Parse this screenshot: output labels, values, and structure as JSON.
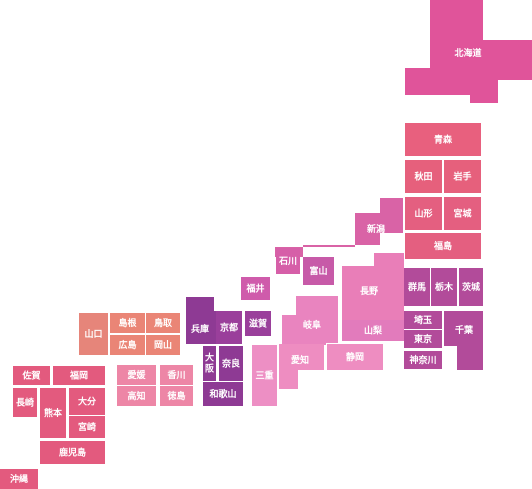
{
  "map": {
    "regions": [
      {
        "id": "hokkaido",
        "label": "北海道",
        "color": "#e0549a"
      },
      {
        "id": "aomori",
        "label": "青森",
        "color": "#e8607e"
      },
      {
        "id": "akita",
        "label": "秋田",
        "color": "#e6607c"
      },
      {
        "id": "iwate",
        "label": "岩手",
        "color": "#e6607c"
      },
      {
        "id": "yamagata",
        "label": "山形",
        "color": "#e45f80"
      },
      {
        "id": "miyagi",
        "label": "宮城",
        "color": "#e45f80"
      },
      {
        "id": "fukushima",
        "label": "福島",
        "color": "#e45f80"
      },
      {
        "id": "niigata",
        "label": "新潟",
        "color": "#d963a6"
      },
      {
        "id": "ishikawa",
        "label": "石川",
        "color": "#d65fa8"
      },
      {
        "id": "toyama",
        "label": "富山",
        "color": "#c75aa8"
      },
      {
        "id": "nagano",
        "label": "長野",
        "color": "#e97eb8"
      },
      {
        "id": "fukui",
        "label": "福井",
        "color": "#cf5bab"
      },
      {
        "id": "gunma",
        "label": "群馬",
        "color": "#b24b9a"
      },
      {
        "id": "tochigi",
        "label": "栃木",
        "color": "#b24b9a"
      },
      {
        "id": "ibaraki",
        "label": "茨城",
        "color": "#b24b9a"
      },
      {
        "id": "saitama",
        "label": "埼玉",
        "color": "#b24b9a"
      },
      {
        "id": "tokyo",
        "label": "東京",
        "color": "#b24b9a"
      },
      {
        "id": "chiba",
        "label": "千葉",
        "color": "#b24b9a"
      },
      {
        "id": "kanagawa",
        "label": "神奈川",
        "color": "#b24b9a"
      },
      {
        "id": "yamanashi",
        "label": "山梨",
        "color": "#e27bbc"
      },
      {
        "id": "gifu",
        "label": "岐阜",
        "color": "#e984bf"
      },
      {
        "id": "aichi",
        "label": "愛知",
        "color": "#ee8dc1"
      },
      {
        "id": "shizuoka",
        "label": "静岡",
        "color": "#ee8dc1"
      },
      {
        "id": "mie",
        "label": "三重",
        "color": "#ed8fc4"
      },
      {
        "id": "shiga",
        "label": "滋賀",
        "color": "#9a3f9b"
      },
      {
        "id": "kyoto",
        "label": "京都",
        "color": "#9a3f9b"
      },
      {
        "id": "hyogo",
        "label": "兵庫",
        "color": "#8e3a94"
      },
      {
        "id": "osaka",
        "label": "大阪",
        "color": "#8e3a94"
      },
      {
        "id": "nara",
        "label": "奈良",
        "color": "#8e3a94"
      },
      {
        "id": "wakayama",
        "label": "和歌山",
        "color": "#8e3a94"
      },
      {
        "id": "tottori",
        "label": "鳥取",
        "color": "#ea8576"
      },
      {
        "id": "shimane",
        "label": "島根",
        "color": "#ea8576"
      },
      {
        "id": "okayama",
        "label": "岡山",
        "color": "#ea8576"
      },
      {
        "id": "hiroshima",
        "label": "広島",
        "color": "#ea8576"
      },
      {
        "id": "yamaguchi",
        "label": "山口",
        "color": "#e6857a"
      },
      {
        "id": "kagawa",
        "label": "香川",
        "color": "#ed86a6"
      },
      {
        "id": "ehime",
        "label": "愛媛",
        "color": "#ed86a6"
      },
      {
        "id": "tokushima",
        "label": "徳島",
        "color": "#ed86a6"
      },
      {
        "id": "kochi",
        "label": "高知",
        "color": "#ed86a6"
      },
      {
        "id": "fukuoka",
        "label": "福岡",
        "color": "#e35a7e"
      },
      {
        "id": "saga",
        "label": "佐賀",
        "color": "#e35a7e"
      },
      {
        "id": "nagasaki",
        "label": "長崎",
        "color": "#e35a7e"
      },
      {
        "id": "kumamoto",
        "label": "熊本",
        "color": "#e35a7e"
      },
      {
        "id": "oita",
        "label": "大分",
        "color": "#e35a7e"
      },
      {
        "id": "miyazaki",
        "label": "宮崎",
        "color": "#e35a7e"
      },
      {
        "id": "kagoshima",
        "label": "鹿児島",
        "color": "#e35a7e"
      },
      {
        "id": "okinawa",
        "label": "沖縄",
        "color": "#e35a7e"
      }
    ]
  }
}
